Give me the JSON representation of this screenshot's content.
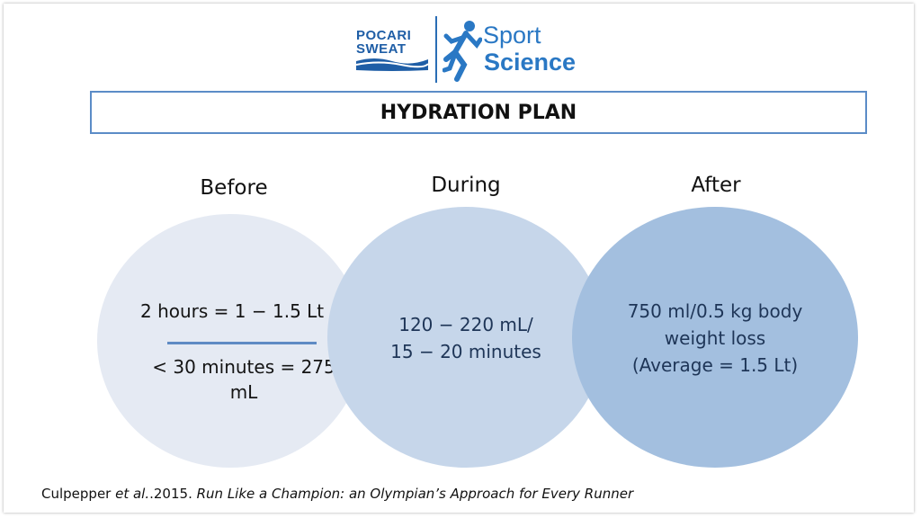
{
  "logo": {
    "pocari_line1": "POCARI",
    "pocari_line2": "SWEAT",
    "sport": "Sport",
    "science": "Science"
  },
  "title": "HYDRATION PLAN",
  "columns": {
    "before": {
      "heading": "Before",
      "line1": "2 hours = 1 − 1.5 Lt",
      "line2": "< 30 minutes = 275 mL"
    },
    "during": {
      "heading": "During",
      "line1": "120 − 220 mL/",
      "line2": "15 − 20 minutes"
    },
    "after": {
      "heading": "After",
      "line1": "750 ml/0.5 kg body",
      "line2": "weight loss",
      "line3": "(Average = 1.5 Lt)"
    }
  },
  "citation": {
    "author": "Culpepper ",
    "etal": "et al.",
    "year": ".2015. ",
    "work": "Run Like a Champion: an Olympian’s Approach for Every Runner"
  },
  "colors": {
    "brand_blue": "#2a78c4",
    "pocari_blue": "#1f5ea6",
    "circle_before": "#e5eaf3",
    "circle_during": "#c6d6ea",
    "circle_after": "#a3bfdf"
  }
}
